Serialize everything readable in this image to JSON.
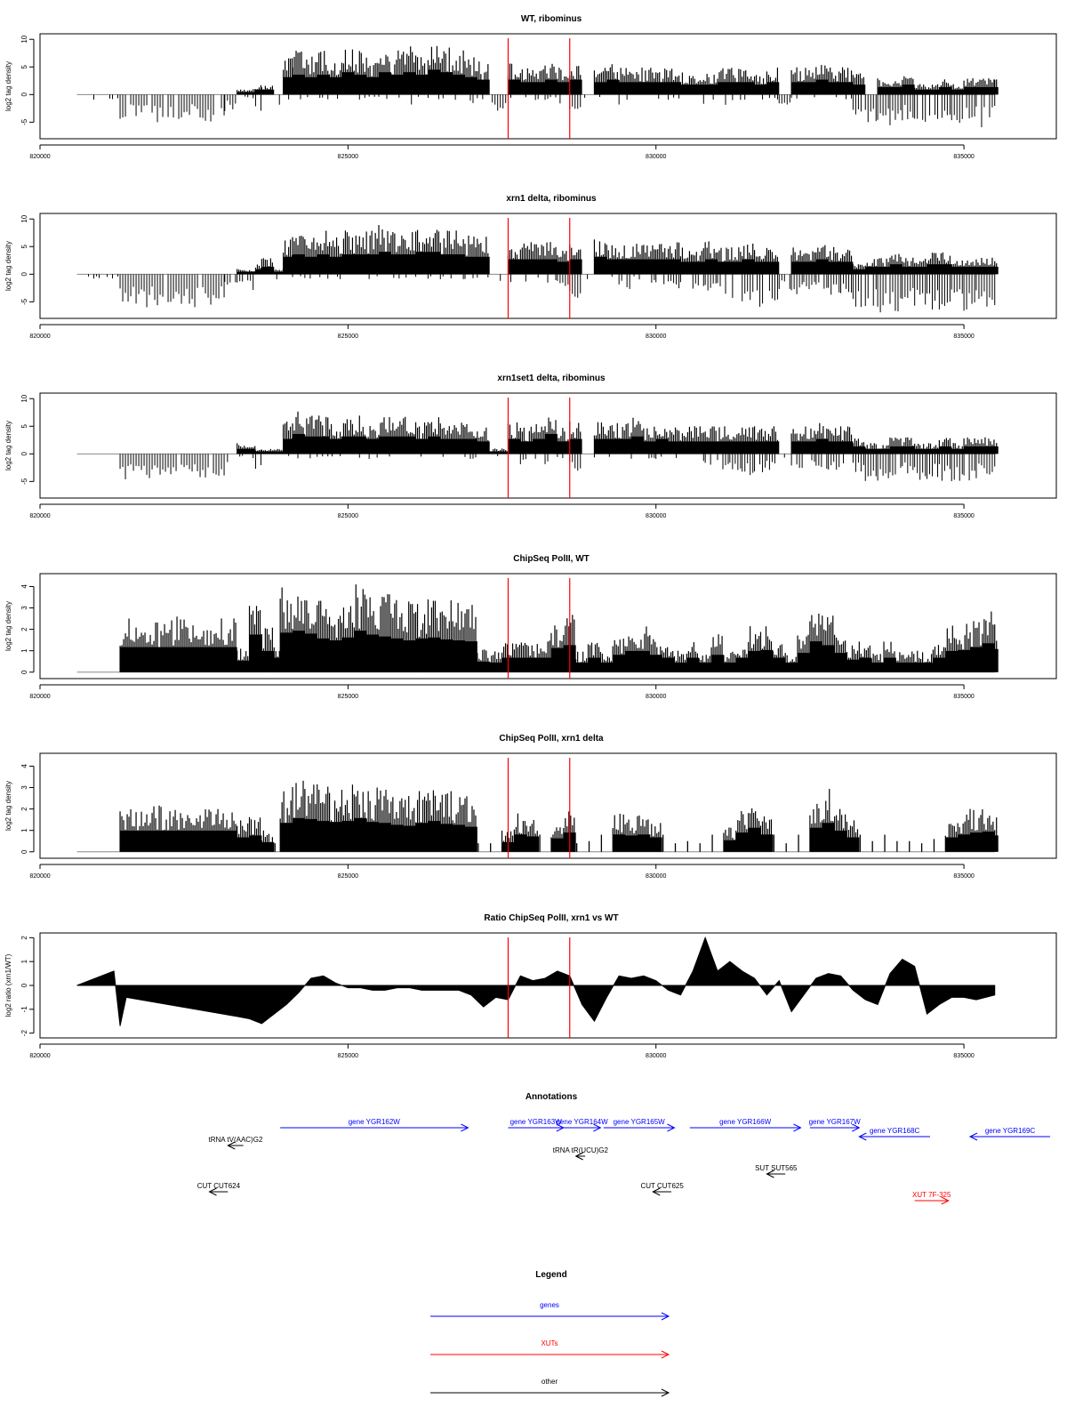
{
  "colors": {
    "gene": "#0000ff",
    "xut": "#ff0000",
    "other": "#000000",
    "marker": "#ff0000",
    "baseline": "#888888"
  },
  "chart_data": [
    {
      "type": "bar",
      "title": "WT, ribominus",
      "ylabel": "log2 tag density",
      "xlim": [
        820000,
        836500
      ],
      "ylim": [
        -8,
        11
      ],
      "yticks": [
        -5,
        0,
        5,
        10
      ],
      "xticks": [
        820000,
        825000,
        830000,
        835000
      ],
      "markers": [
        827600,
        828600
      ],
      "x": [
        820600,
        820700,
        821300,
        823000,
        823200,
        823500,
        823600,
        823800,
        823950,
        824100,
        824300,
        824500,
        824700,
        824900,
        825100,
        825300,
        825500,
        825700,
        825900,
        826100,
        826300,
        826500,
        826700,
        826900,
        827100,
        827300,
        827600,
        827800,
        828000,
        828200,
        828400,
        828600,
        828800,
        829000,
        829200,
        829400,
        829600,
        829800,
        830000,
        830200,
        830400,
        830600,
        830800,
        831000,
        831200,
        831400,
        831600,
        831800,
        832000,
        832200,
        832400,
        832600,
        832800,
        833000,
        833200,
        833400,
        833600,
        833800,
        834000,
        834200,
        834400,
        834600,
        834800,
        835000,
        835200,
        835500
      ],
      "pos": [
        0,
        0,
        0,
        0,
        1,
        2,
        2,
        0,
        7,
        8,
        7,
        8,
        7,
        9,
        8,
        7,
        9,
        8,
        9,
        8,
        10,
        9,
        8,
        7,
        6,
        0,
        6,
        5,
        5,
        6,
        5,
        6,
        0,
        5,
        6,
        5,
        5,
        5,
        5,
        5,
        4,
        4,
        4,
        5,
        5,
        5,
        4,
        5,
        0,
        5,
        5,
        6,
        5,
        5,
        4,
        0,
        3,
        3,
        4,
        2,
        2,
        3,
        2,
        3,
        3,
        3
      ],
      "neg": [
        0,
        -1,
        -5,
        -3,
        -1,
        -3,
        0,
        -2,
        -1,
        -1,
        -1,
        -1,
        -2,
        -1,
        -1,
        -1,
        -1,
        -1,
        -2,
        -1,
        -1,
        -1,
        -1,
        -2,
        -1,
        -3,
        -1,
        -1,
        -2,
        -1,
        -2,
        -3,
        -1,
        -1,
        -1,
        -2,
        -1,
        -1,
        -2,
        -1,
        -1,
        -2,
        -1,
        -2,
        -1,
        -1,
        -2,
        -1,
        -3,
        -1,
        -1,
        -2,
        -1,
        -1,
        -4,
        -5,
        -5,
        -6,
        -5,
        -5,
        -5,
        -5,
        -6,
        -5,
        -6,
        -5
      ]
    },
    {
      "type": "bar",
      "title": "xrn1 delta, ribominus",
      "ylabel": "log2 tag density",
      "xlim": [
        820000,
        836500
      ],
      "ylim": [
        -8,
        11
      ],
      "yticks": [
        -5,
        0,
        5,
        10
      ],
      "xticks": [
        820000,
        825000,
        830000,
        835000
      ],
      "markers": [
        827600,
        828600
      ],
      "x": [
        820600,
        820700,
        821300,
        823000,
        823200,
        823500,
        823600,
        823800,
        823950,
        824100,
        824300,
        824500,
        824700,
        824900,
        825100,
        825300,
        825500,
        825700,
        825900,
        826100,
        826300,
        826500,
        826700,
        826900,
        827100,
        827300,
        827600,
        827800,
        828000,
        828200,
        828400,
        828600,
        828800,
        829000,
        829200,
        829400,
        829600,
        829800,
        830000,
        830200,
        830400,
        830600,
        830800,
        831000,
        831200,
        831400,
        831600,
        831800,
        832000,
        832200,
        832400,
        832600,
        832800,
        833000,
        833200,
        833400,
        833600,
        833800,
        834000,
        834200,
        834400,
        834600,
        834800,
        835000,
        835200,
        835500
      ],
      "pos": [
        0,
        0,
        0,
        0,
        1,
        2,
        3,
        1,
        7,
        8,
        7,
        8,
        7,
        8,
        8,
        8,
        9,
        8,
        8,
        9,
        9,
        8,
        8,
        7,
        7,
        0,
        6,
        6,
        6,
        6,
        5,
        6,
        0,
        7,
        6,
        6,
        6,
        6,
        6,
        6,
        5,
        5,
        6,
        5,
        5,
        6,
        5,
        5,
        0,
        5,
        5,
        6,
        5,
        5,
        2,
        3,
        3,
        4,
        3,
        3,
        4,
        4,
        3,
        3,
        3,
        3
      ],
      "neg": [
        0,
        -1,
        -6,
        -3,
        -3,
        -2,
        -1,
        -1,
        -1,
        -1,
        -1,
        -1,
        -1,
        -1,
        -2,
        -1,
        -1,
        -1,
        -1,
        -1,
        -1,
        -1,
        -1,
        -1,
        -1,
        -2,
        -2,
        -2,
        -1,
        -2,
        -3,
        -5,
        -1,
        -1,
        -1,
        -3,
        -1,
        -2,
        -2,
        -3,
        -2,
        -3,
        -3,
        -4,
        -5,
        -5,
        -6,
        -5,
        -3,
        -4,
        -3,
        -4,
        -4,
        -4,
        -6,
        -6,
        -7,
        -7,
        -6,
        -6,
        -7,
        -7,
        -6,
        -7,
        -6,
        -6
      ]
    },
    {
      "type": "bar",
      "title": "xrn1set1 delta, ribominus",
      "ylabel": "log2 tag density",
      "xlim": [
        820000,
        836500
      ],
      "ylim": [
        -8,
        11
      ],
      "yticks": [
        -5,
        0,
        5,
        10
      ],
      "xticks": [
        820000,
        825000,
        830000,
        835000
      ],
      "markers": [
        827600,
        828600
      ],
      "x": [
        820600,
        820700,
        821300,
        823000,
        823200,
        823500,
        823600,
        823800,
        823950,
        824100,
        824300,
        824500,
        824700,
        824900,
        825100,
        825300,
        825500,
        825700,
        825900,
        826100,
        826300,
        826500,
        826700,
        826900,
        827100,
        827300,
        827600,
        827800,
        828000,
        828200,
        828400,
        828600,
        828800,
        829000,
        829200,
        829400,
        829600,
        829800,
        830000,
        830200,
        830400,
        830600,
        830800,
        831000,
        831200,
        831400,
        831600,
        831800,
        832000,
        832200,
        832400,
        832600,
        832800,
        833000,
        833200,
        833400,
        833600,
        833800,
        834000,
        834200,
        834400,
        834600,
        834800,
        835000,
        835200,
        835500
      ],
      "pos": [
        0,
        0,
        0,
        0,
        2,
        1,
        1,
        1,
        6,
        8,
        7,
        7,
        6,
        7,
        7,
        6,
        7,
        7,
        7,
        6,
        7,
        6,
        6,
        6,
        5,
        1,
        6,
        5,
        6,
        8,
        5,
        6,
        0,
        6,
        6,
        6,
        7,
        5,
        6,
        5,
        5,
        5,
        5,
        5,
        5,
        5,
        5,
        5,
        0,
        5,
        5,
        6,
        5,
        5,
        3,
        2,
        2,
        3,
        3,
        2,
        2,
        3,
        2,
        3,
        3,
        3
      ],
      "neg": [
        0,
        0,
        -5,
        -2,
        -1,
        -4,
        0,
        -1,
        -1,
        -1,
        -1,
        -1,
        -1,
        -1,
        -1,
        -1,
        -1,
        -1,
        -1,
        -1,
        -1,
        -1,
        -1,
        -1,
        -1,
        -1,
        -1,
        -2,
        -1,
        -2,
        -1,
        -4,
        -1,
        -1,
        -1,
        -2,
        -1,
        -1,
        -1,
        -1,
        -1,
        -2,
        -2,
        -3,
        -3,
        -4,
        -4,
        -3,
        -1,
        -3,
        -2,
        -3,
        -3,
        -2,
        -4,
        -5,
        -6,
        -5,
        -4,
        -5,
        -5,
        -5,
        -5,
        -5,
        -5,
        -5
      ]
    },
    {
      "type": "bar",
      "title": "ChipSeq PolII, WT",
      "ylabel": "log2 tag density",
      "xlim": [
        820000,
        836500
      ],
      "ylim": [
        -0.3,
        4.6
      ],
      "yticks": [
        0,
        1,
        2,
        3,
        4
      ],
      "xticks": [
        820000,
        825000,
        830000,
        835000
      ],
      "markers": [
        827600,
        828600
      ],
      "x": [
        820600,
        821300,
        823200,
        823400,
        823600,
        823800,
        823900,
        824100,
        824300,
        824500,
        824700,
        824900,
        825100,
        825300,
        825500,
        825700,
        825900,
        826100,
        826300,
        826500,
        826700,
        826900,
        827100,
        827300,
        827500,
        827700,
        827900,
        828100,
        828300,
        828500,
        828700,
        828900,
        829100,
        829300,
        829500,
        829700,
        829900,
        830100,
        830300,
        830500,
        830700,
        830900,
        831100,
        831300,
        831500,
        831700,
        831900,
        832100,
        832300,
        832500,
        832700,
        832900,
        833100,
        833300,
        833500,
        833700,
        833900,
        834100,
        834300,
        834500,
        834700,
        834900,
        835100,
        835300,
        835500
      ],
      "pos": [
        0,
        2.6,
        1.2,
        3.9,
        2.2,
        1.5,
        4.1,
        4.3,
        4.0,
        3.5,
        3.3,
        3.6,
        4.3,
        3.9,
        3.7,
        3.5,
        3.3,
        3.5,
        3.6,
        3.4,
        3.3,
        3.2,
        1.1,
        1.0,
        1.5,
        1.5,
        1.5,
        1.5,
        2.5,
        2.8,
        1.0,
        1.5,
        1.0,
        1.8,
        2.2,
        2.2,
        1.8,
        1.5,
        1.0,
        1.5,
        1.0,
        1.8,
        1.0,
        1.5,
        2.2,
        2.3,
        1.5,
        1.0,
        2.0,
        3.2,
        2.8,
        2.0,
        1.3,
        1.5,
        1.0,
        1.5,
        1.0,
        1.0,
        1.0,
        1.5,
        2.2,
        2.3,
        2.6,
        3.0,
        2.4
      ],
      "neg": []
    },
    {
      "type": "bar",
      "title": "ChipSeq PolII, xrn1 delta",
      "ylabel": "log2 tag density",
      "xlim": [
        820000,
        836500
      ],
      "ylim": [
        -0.3,
        4.6
      ],
      "yticks": [
        0,
        1,
        2,
        3,
        4
      ],
      "xticks": [
        820000,
        825000,
        830000,
        835000
      ],
      "markers": [
        827600,
        828600
      ],
      "x": [
        820600,
        821300,
        823200,
        823400,
        823600,
        823800,
        823900,
        824100,
        824300,
        824500,
        824700,
        824900,
        825100,
        825300,
        825500,
        825700,
        825900,
        826100,
        826300,
        826500,
        826700,
        826900,
        827100,
        827300,
        827500,
        827700,
        827900,
        828100,
        828300,
        828500,
        828700,
        828900,
        829100,
        829300,
        829500,
        829700,
        829900,
        830100,
        830300,
        830500,
        830700,
        830900,
        831100,
        831300,
        831500,
        831700,
        831900,
        832100,
        832300,
        832500,
        832700,
        832900,
        833100,
        833300,
        833500,
        833700,
        833900,
        834100,
        834300,
        834500,
        834700,
        834900,
        835100,
        835300,
        835500
      ],
      "pos": [
        0,
        2.2,
        1.5,
        1.7,
        1.0,
        0.4,
        3.0,
        3.5,
        3.4,
        3.2,
        3.1,
        3.2,
        3.5,
        3.1,
        3.0,
        2.8,
        2.7,
        3.0,
        3.2,
        2.9,
        2.8,
        2.6,
        0.4,
        0.4,
        1.0,
        1.8,
        1.6,
        0.8,
        1.4,
        2.0,
        0.4,
        0.5,
        0.8,
        1.8,
        1.7,
        1.8,
        1.5,
        0.8,
        0.4,
        0.5,
        0.4,
        0.8,
        1.2,
        2.0,
        2.5,
        1.8,
        0.8,
        0.4,
        0.8,
        2.5,
        3.0,
        2.2,
        1.5,
        0.8,
        0.5,
        0.8,
        0.5,
        0.5,
        0.4,
        0.6,
        1.5,
        1.8,
        2.0,
        2.1,
        1.7
      ],
      "neg": []
    },
    {
      "type": "area",
      "title": "Ratio ChipSeq PolII, xrn1 vs WT",
      "ylabel": "log2 ratio (xrn1/WT)",
      "xlim": [
        820000,
        836500
      ],
      "ylim": [
        -2.2,
        2.2
      ],
      "yticks": [
        -2,
        -1,
        0,
        1,
        2
      ],
      "xticks": [
        820000,
        825000,
        830000,
        835000
      ],
      "markers": [
        827600,
        828600
      ],
      "x": [
        820600,
        821200,
        821300,
        821400,
        823200,
        823400,
        823600,
        823800,
        824000,
        824200,
        824400,
        824600,
        824800,
        825000,
        825200,
        825400,
        825600,
        825800,
        826000,
        826200,
        826400,
        826600,
        826800,
        827000,
        827200,
        827400,
        827600,
        827800,
        828000,
        828200,
        828400,
        828600,
        828800,
        829000,
        829200,
        829400,
        829600,
        829800,
        830000,
        830200,
        830400,
        830600,
        830800,
        831000,
        831200,
        831400,
        831600,
        831800,
        832000,
        832200,
        832400,
        832600,
        832800,
        833000,
        833200,
        833400,
        833600,
        833800,
        834000,
        834200,
        834400,
        834600,
        834800,
        835000,
        835200,
        835500
      ],
      "values": [
        0,
        0.6,
        -1.7,
        -0.5,
        -1.3,
        -1.4,
        -1.6,
        -1.2,
        -0.8,
        -0.3,
        0.3,
        0.4,
        0.1,
        -0.1,
        -0.1,
        -0.2,
        -0.2,
        -0.1,
        -0.1,
        -0.2,
        -0.2,
        -0.2,
        -0.2,
        -0.4,
        -0.9,
        -0.5,
        -0.6,
        0.4,
        0.2,
        0.3,
        0.6,
        0.4,
        -0.8,
        -1.5,
        -0.5,
        0.4,
        0.3,
        0.4,
        0.2,
        -0.2,
        -0.4,
        0.6,
        2.0,
        0.6,
        1.0,
        0.6,
        0.3,
        -0.4,
        0.2,
        -1.1,
        -0.4,
        0.3,
        0.5,
        0.4,
        -0.2,
        -0.6,
        -0.8,
        0.5,
        1.1,
        0.8,
        -1.2,
        -0.8,
        -0.5,
        -0.5,
        -0.6,
        -0.4
      ]
    }
  ],
  "annotations": {
    "title": "Annotations",
    "features": [
      {
        "label": "gene YGR162W",
        "type": "gene",
        "start": 823900,
        "end": 826950,
        "lane": 0
      },
      {
        "label": "gene YGR163W",
        "type": "gene",
        "start": 827600,
        "end": 828500,
        "lane": 0
      },
      {
        "label": "gene YGR164W",
        "type": "gene",
        "start": 828500,
        "end": 829100,
        "lane": 0
      },
      {
        "label": "gene YGR165W",
        "type": "gene",
        "start": 829150,
        "end": 830300,
        "lane": 0
      },
      {
        "label": "gene YGR166W",
        "type": "gene",
        "start": 830550,
        "end": 832350,
        "lane": 0
      },
      {
        "label": "gene YGR167W",
        "type": "gene",
        "start": 832500,
        "end": 833300,
        "lane": 0
      },
      {
        "label": "gene YGR168C",
        "type": "gene",
        "start": 834450,
        "end": 833300,
        "lane": 1
      },
      {
        "label": "gene YGR169C",
        "type": "gene",
        "start": 836400,
        "end": 835100,
        "lane": 1
      },
      {
        "label": "tRNA tV(AAC)G2",
        "type": "other",
        "start": 823300,
        "end": 823050,
        "lane": 2
      },
      {
        "label": "tRNA tR(UCU)G2",
        "type": "other",
        "start": 828850,
        "end": 828700,
        "lane": 3
      },
      {
        "label": "SUT SUT565",
        "type": "other",
        "start": 832100,
        "end": 831800,
        "lane": 4
      },
      {
        "label": "CUT CUT624",
        "type": "other",
        "start": 823050,
        "end": 822750,
        "lane": 5
      },
      {
        "label": "CUT CUT625",
        "type": "other",
        "start": 830250,
        "end": 829950,
        "lane": 5
      },
      {
        "label": "XUT 7F-325",
        "type": "xut",
        "start": 834200,
        "end": 834750,
        "lane": 6
      }
    ]
  },
  "legend": {
    "title": "Legend",
    "items": [
      {
        "label": "genes",
        "type": "gene"
      },
      {
        "label": "XUTs",
        "type": "xut"
      },
      {
        "label": "other",
        "type": "other"
      }
    ]
  }
}
